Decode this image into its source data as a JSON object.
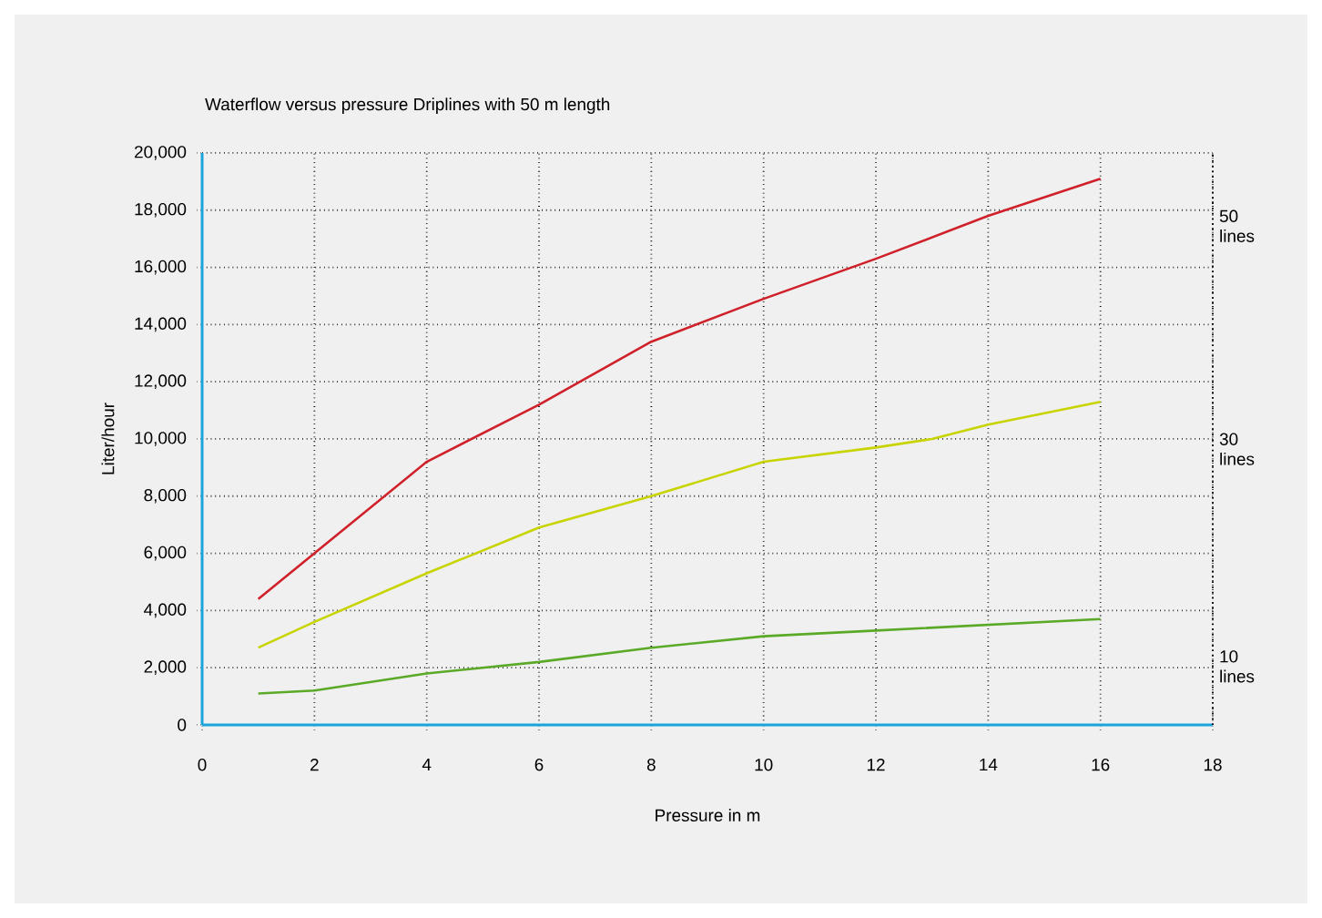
{
  "chart_data": {
    "type": "line",
    "title": "Waterflow versus pressure Driplines with 50 m length",
    "xlabel": "Pressure in m",
    "ylabel": "Liter/hour",
    "x": [
      1,
      2,
      4,
      6,
      8,
      10,
      12,
      14,
      16
    ],
    "series": [
      {
        "name": "50 lines",
        "color": "#d0202a",
        "values": [
          4400,
          6000,
          9200,
          11200,
          13400,
          14900,
          16300,
          17800,
          19100
        ]
      },
      {
        "name": "30 lines",
        "color": "#c8d400",
        "x": [
          1,
          2,
          4,
          6,
          8,
          10,
          12,
          13,
          14,
          16
        ],
        "values": [
          2700,
          3600,
          5300,
          6900,
          8000,
          9200,
          9700,
          10000,
          10500,
          11300
        ]
      },
      {
        "name": "10 lines",
        "color": "#5aaa28",
        "values": [
          1100,
          1200,
          1800,
          2200,
          2700,
          3100,
          3300,
          3500,
          3700
        ]
      }
    ],
    "xlim": [
      0,
      18
    ],
    "xticks": [
      0,
      2,
      4,
      6,
      8,
      10,
      12,
      14,
      16,
      18
    ],
    "ylim": [
      0,
      20000
    ],
    "yticks": [
      {
        "value": 0,
        "label": "0"
      },
      {
        "value": 2000,
        "label": "2,000"
      },
      {
        "value": 4000,
        "label": "4,000"
      },
      {
        "value": 6000,
        "label": "6,000"
      },
      {
        "value": 8000,
        "label": "8,000"
      },
      {
        "value": 10000,
        "label": "10,000"
      },
      {
        "value": 12000,
        "label": "12,000"
      },
      {
        "value": 14000,
        "label": "14,000"
      },
      {
        "value": 16000,
        "label": "16,000"
      },
      {
        "value": 18000,
        "label": "18,000"
      },
      {
        "value": 20000,
        "label": "20,000"
      }
    ],
    "grid": true,
    "legend": false,
    "marker": "none",
    "line_style": "solid"
  }
}
